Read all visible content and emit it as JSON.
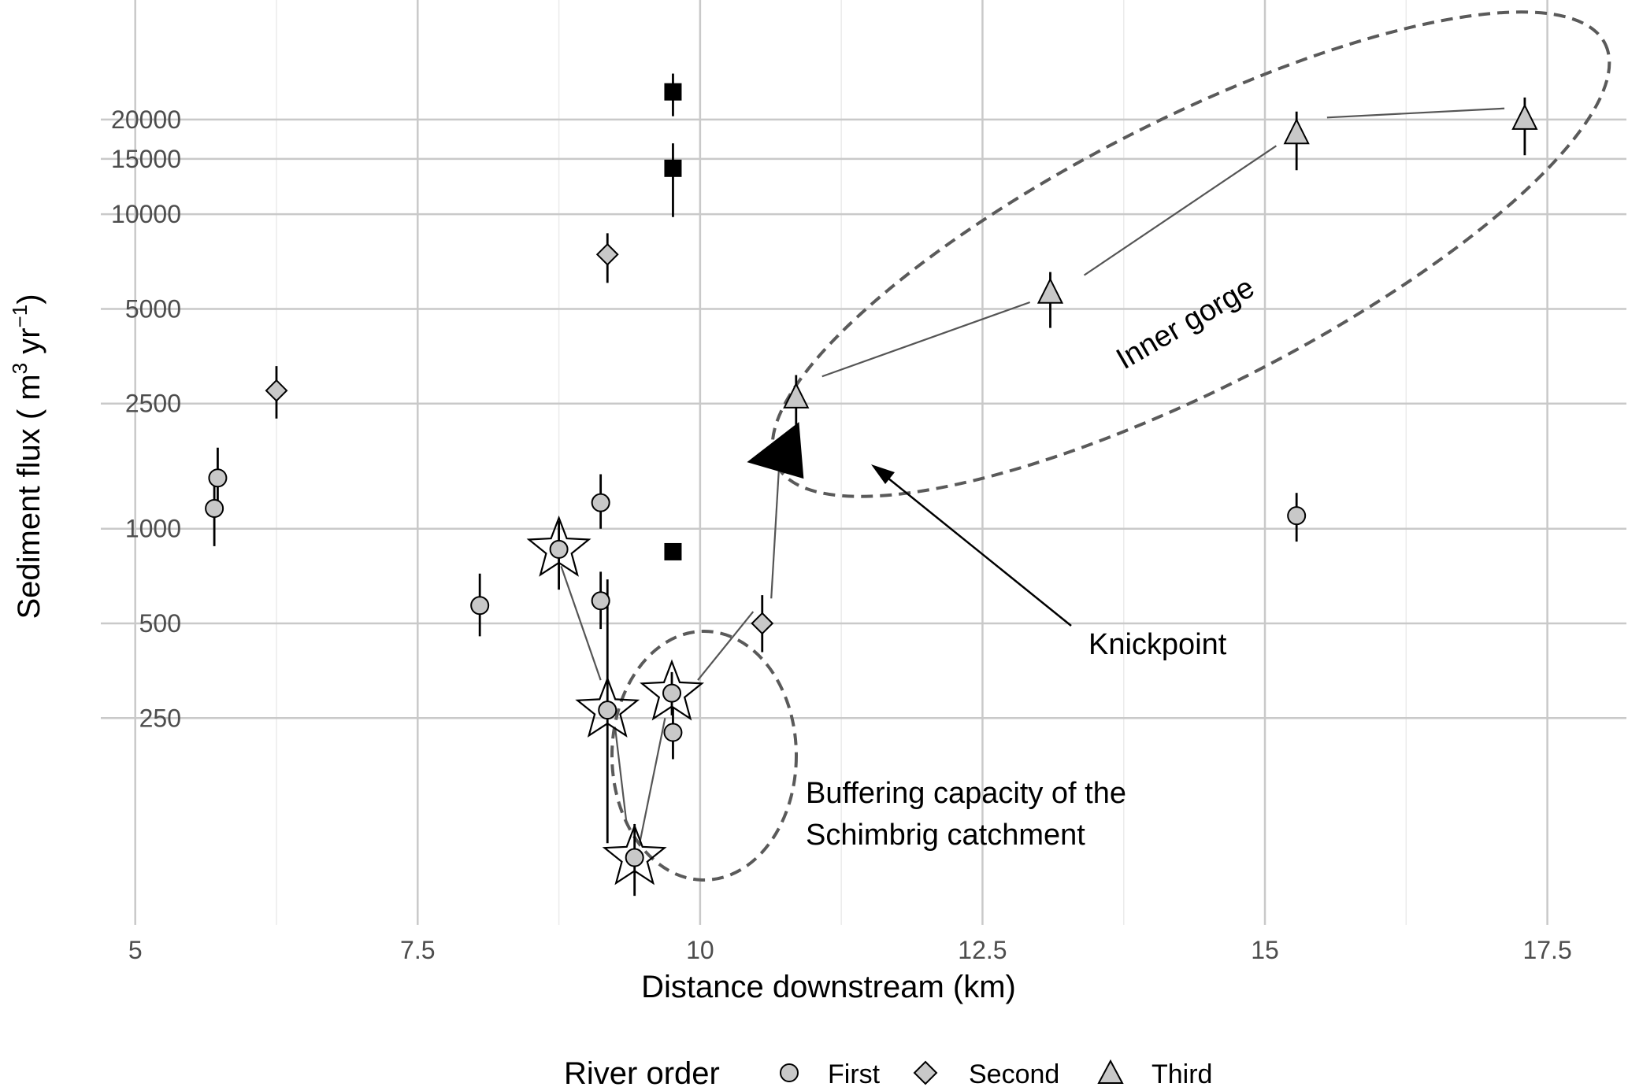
{
  "chart_data": {
    "type": "scatter",
    "title": "",
    "xlabel": "Distance downstream (km)",
    "ylabel_main": "Sediment flux ( m",
    "ylabel_sup1": "3",
    "ylabel_mid": " yr",
    "ylabel_sup2": "−1",
    "ylabel_end": ")",
    "y_scale": "log",
    "xlim": [
      4.5,
      18.2
    ],
    "ylim": [
      55,
      48000
    ],
    "x_ticks": [
      {
        "value": 5,
        "label": "5"
      },
      {
        "value": 7.5,
        "label": "7.5"
      },
      {
        "value": 10,
        "label": "10"
      },
      {
        "value": 12.5,
        "label": "12.5"
      },
      {
        "value": 15,
        "label": "15"
      },
      {
        "value": 17.5,
        "label": "17.5"
      }
    ],
    "y_ticks": [
      {
        "value": 250,
        "label": "250"
      },
      {
        "value": 500,
        "label": "500"
      },
      {
        "value": 1000,
        "label": "1000"
      },
      {
        "value": 2500,
        "label": "2500"
      },
      {
        "value": 5000,
        "label": "5000"
      },
      {
        "value": 10000,
        "label": "10000"
      },
      {
        "value": 15000,
        "label": "15000"
      },
      {
        "value": 20000,
        "label": "20000"
      }
    ],
    "grid": true,
    "legend": {
      "title": "River order",
      "placement": "bottom",
      "entries": [
        {
          "label": "First",
          "shape": "circle"
        },
        {
          "label": "Second",
          "shape": "diamond"
        },
        {
          "label": "Third",
          "shape": "triangle"
        }
      ]
    },
    "marker_fill": "#c8c8c8",
    "series": [
      {
        "shape": "circle",
        "points": [
          {
            "x": 5.7,
            "y": 1160,
            "lo": 880,
            "hi": 1490
          },
          {
            "x": 5.73,
            "y": 1450,
            "lo": 1180,
            "hi": 1810
          },
          {
            "x": 8.05,
            "y": 570,
            "lo": 455,
            "hi": 720
          },
          {
            "x": 9.12,
            "y": 1210,
            "lo": 1000,
            "hi": 1490
          },
          {
            "x": 9.12,
            "y": 590,
            "lo": 480,
            "hi": 730
          },
          {
            "x": 9.18,
            "y": 265,
            "lo": 100,
            "hi": 690
          },
          {
            "x": 9.42,
            "y": 90,
            "lo": 68,
            "hi": 115
          },
          {
            "x": 9.75,
            "y": 300,
            "lo": 255,
            "hi": 350
          },
          {
            "x": 9.76,
            "y": 225,
            "lo": 185,
            "hi": 270
          },
          {
            "x": 15.28,
            "y": 1100,
            "lo": 910,
            "hi": 1300
          },
          {
            "x": 8.75,
            "y": 860,
            "lo": 640,
            "hi": 1060
          }
        ]
      },
      {
        "shape": "diamond",
        "points": [
          {
            "x": 6.25,
            "y": 2750,
            "lo": 2240,
            "hi": 3290
          },
          {
            "x": 9.18,
            "y": 7450,
            "lo": 6050,
            "hi": 8700
          },
          {
            "x": 10.55,
            "y": 500,
            "lo": 405,
            "hi": 615
          }
        ]
      },
      {
        "shape": "triangle",
        "points": [
          {
            "x": 10.85,
            "y": 2600,
            "lo": 2070,
            "hi": 3080
          },
          {
            "x": 13.1,
            "y": 5600,
            "lo": 4350,
            "hi": 6550
          },
          {
            "x": 15.28,
            "y": 18000,
            "lo": 13800,
            "hi": 21200
          },
          {
            "x": 17.3,
            "y": 20000,
            "lo": 15400,
            "hi": 23500
          }
        ]
      },
      {
        "shape": "square",
        "fill": "#000000",
        "points": [
          {
            "x": 9.76,
            "y": 24500,
            "lo": 20500,
            "hi": 28000
          },
          {
            "x": 9.76,
            "y": 14000,
            "lo": 9800,
            "hi": 16800
          },
          {
            "x": 9.76,
            "y": 845
          }
        ]
      }
    ],
    "stars": [
      {
        "x": 8.75,
        "y": 860
      },
      {
        "x": 9.18,
        "y": 265
      },
      {
        "x": 9.42,
        "y": 90
      },
      {
        "x": 9.75,
        "y": 300
      }
    ],
    "connectors": [
      [
        [
          8.77,
          760
        ],
        [
          9.12,
          330
        ]
      ],
      [
        [
          9.25,
          230
        ],
        [
          9.35,
          115
        ]
      ],
      [
        [
          9.47,
          102
        ],
        [
          9.69,
          250
        ]
      ],
      [
        [
          9.98,
          330
        ],
        [
          10.47,
          545
        ]
      ],
      [
        [
          10.63,
          600
        ],
        [
          10.7,
          1600
        ]
      ],
      [
        [
          11.08,
          3050
        ],
        [
          12.92,
          5250
        ]
      ],
      [
        [
          13.4,
          6400
        ],
        [
          15.1,
          16500
        ]
      ],
      [
        [
          15.55,
          20300
        ],
        [
          17.12,
          21700
        ]
      ]
    ],
    "knickpoint_marker": {
      "x": 10.68,
      "y": 1600
    },
    "annotations": [
      {
        "id": "inner-gorge",
        "text": "Inner gorge"
      },
      {
        "id": "knickpoint",
        "text": "Knickpoint"
      },
      {
        "id": "buffer-1",
        "text": "Buffering capacity of the"
      },
      {
        "id": "buffer-2",
        "text": "Schimbrig catchment"
      }
    ]
  }
}
